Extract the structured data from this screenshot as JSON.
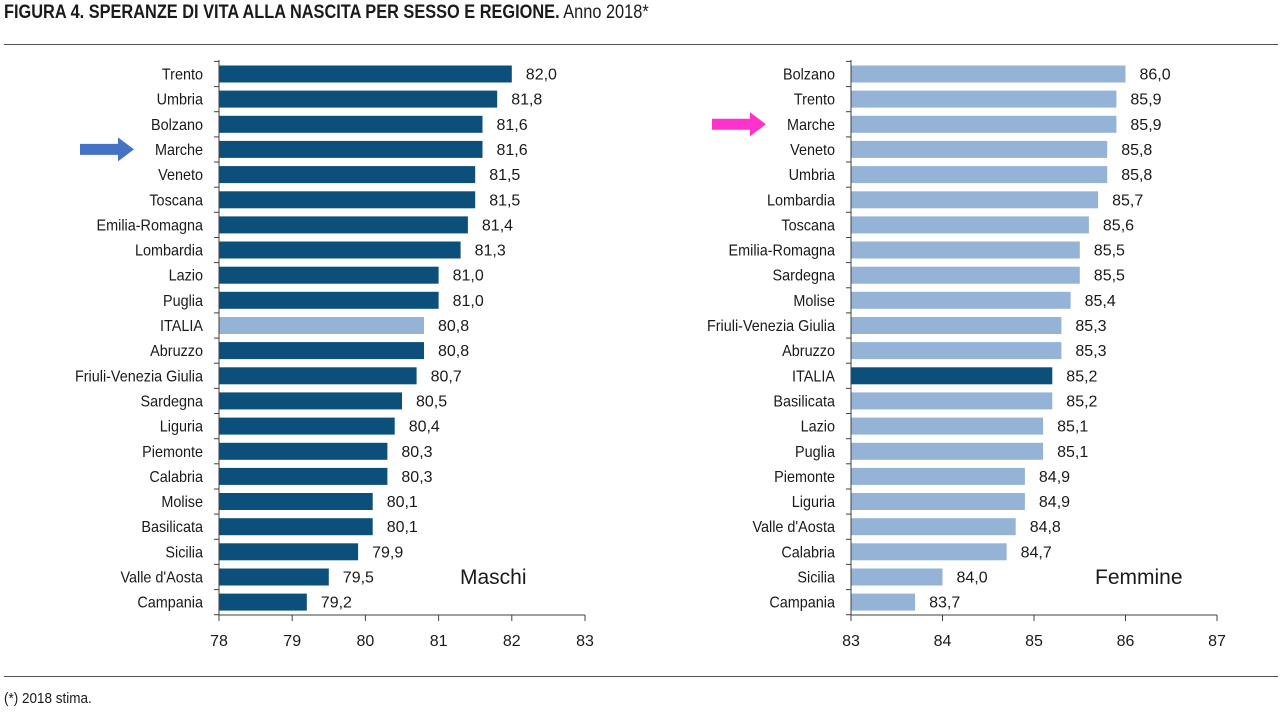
{
  "header": {
    "title_bold": "FIGURA 4. SPERANZE DI VITA ALLA NASCITA PER SESSO E REGIONE.",
    "title_regular": "Anno 2018*"
  },
  "footnote": "(*) 2018 stima.",
  "colors": {
    "dark_bar": "#0b4f7a",
    "light_bar": "#95b3d7",
    "arrow_blue": "#4472c4",
    "arrow_magenta": "#ff33cc",
    "axis": "#404040"
  },
  "chart_data": [
    {
      "type": "bar",
      "orientation": "horizontal",
      "corner_label": "Maschi",
      "highlight_category": "ITALIA",
      "arrow_category": "Marche",
      "arrow_color": "blue",
      "xlim": [
        78,
        83
      ],
      "xticks": [
        "78",
        "79",
        "80",
        "81",
        "82",
        "83"
      ],
      "categories": [
        "Trento",
        "Umbria",
        "Bolzano",
        "Marche",
        "Veneto",
        "Toscana",
        "Emilia-Romagna",
        "Lombardia",
        "Lazio",
        "Puglia",
        "ITALIA",
        "Abruzzo",
        "Friuli-Venezia Giulia",
        "Sardegna",
        "Liguria",
        "Piemonte",
        "Calabria",
        "Molise",
        "Basilicata",
        "Sicilia",
        "Valle d'Aosta",
        "Campania"
      ],
      "values": [
        82.0,
        81.8,
        81.6,
        81.6,
        81.5,
        81.5,
        81.4,
        81.3,
        81.0,
        81.0,
        80.8,
        80.8,
        80.7,
        80.5,
        80.4,
        80.3,
        80.3,
        80.1,
        80.1,
        79.9,
        79.5,
        79.2
      ],
      "value_labels": [
        "82,0",
        "81,8",
        "81,6",
        "81,6",
        "81,5",
        "81,5",
        "81,4",
        "81,3",
        "81,0",
        "81,0",
        "80,8",
        "80,8",
        "80,7",
        "80,5",
        "80,4",
        "80,3",
        "80,3",
        "80,1",
        "80,1",
        "79,9",
        "79,5",
        "79,2"
      ]
    },
    {
      "type": "bar",
      "orientation": "horizontal",
      "corner_label": "Femmine",
      "highlight_category": "ITALIA",
      "arrow_category": "Marche",
      "arrow_color": "magenta",
      "xlim": [
        83,
        87
      ],
      "xticks": [
        "83",
        "84",
        "85",
        "86",
        "87"
      ],
      "categories": [
        "Bolzano",
        "Trento",
        "Marche",
        "Veneto",
        "Umbria",
        "Lombardia",
        "Toscana",
        "Emilia-Romagna",
        "Sardegna",
        "Molise",
        "Friuli-Venezia Giulia",
        "Abruzzo",
        "ITALIA",
        "Basilicata",
        "Lazio",
        "Puglia",
        "Piemonte",
        "Liguria",
        "Valle d'Aosta",
        "Calabria",
        "Sicilia",
        "Campania"
      ],
      "values": [
        86.0,
        85.9,
        85.9,
        85.8,
        85.8,
        85.7,
        85.6,
        85.5,
        85.5,
        85.4,
        85.3,
        85.3,
        85.2,
        85.2,
        85.1,
        85.1,
        84.9,
        84.9,
        84.8,
        84.7,
        84.0,
        83.7
      ],
      "value_labels": [
        "86,0",
        "85,9",
        "85,9",
        "85,8",
        "85,8",
        "85,7",
        "85,6",
        "85,5",
        "85,5",
        "85,4",
        "85,3",
        "85,3",
        "85,2",
        "85,2",
        "85,1",
        "85,1",
        "84,9",
        "84,9",
        "84,8",
        "84,7",
        "84,0",
        "83,7"
      ]
    }
  ]
}
